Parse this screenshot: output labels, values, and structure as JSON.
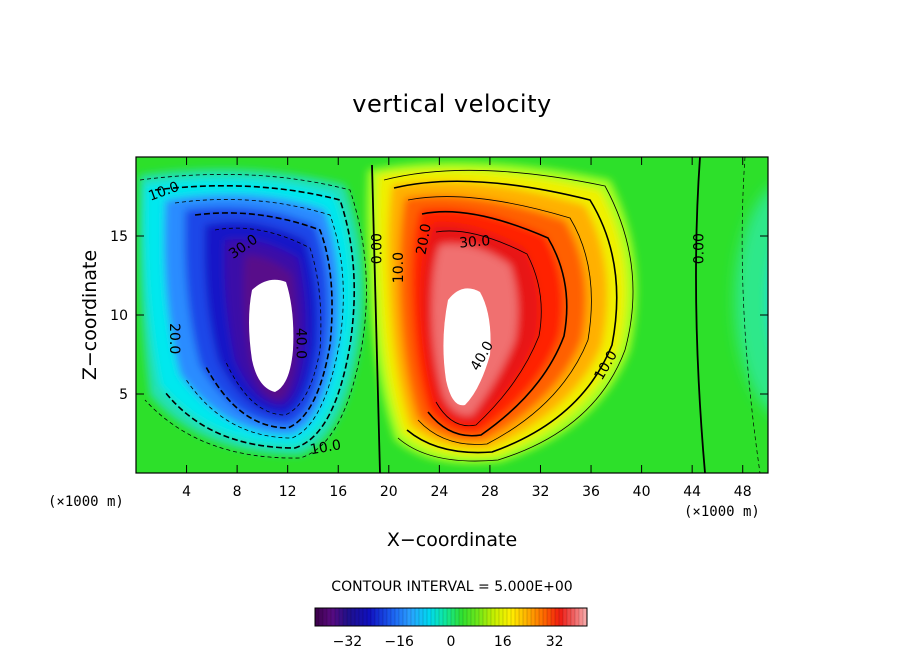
{
  "chart_data": {
    "type": "heatmap",
    "title": "vertical velocity",
    "xlabel": "X−coordinate",
    "ylabel": "Z−coordinate",
    "x_unit": "(×1000 m)",
    "y_unit": "(×1000 m)",
    "xlim": [
      0,
      50
    ],
    "ylim": [
      0,
      20
    ],
    "x_ticks": [
      4,
      8,
      12,
      16,
      20,
      24,
      28,
      32,
      36,
      40,
      44,
      48
    ],
    "y_ticks": [
      5,
      10,
      15
    ],
    "contour_interval_text": "CONTOUR INTERVAL = 5.000E+00",
    "colorbar": {
      "range": [
        -42,
        42
      ],
      "ticks": [
        -32,
        -16,
        0,
        16,
        32
      ],
      "tick_labels": [
        "−32",
        "−16",
        "0",
        "16",
        "32"
      ]
    },
    "contour_labels": [
      {
        "text": "10.0",
        "x": 2.2,
        "z": 17.8,
        "angle": -20
      },
      {
        "text": "30.0",
        "x": 8.5,
        "z": 14.3,
        "angle": -35
      },
      {
        "text": "20.0",
        "x": 3.0,
        "z": 8.5,
        "angle": 90
      },
      {
        "text": "40.0",
        "x": 13.0,
        "z": 8.2,
        "angle": 90
      },
      {
        "text": "10.0",
        "x": 15.0,
        "z": 1.6,
        "angle": -10
      },
      {
        "text": "0.00",
        "x": 19.1,
        "z": 14.2,
        "angle": -90
      },
      {
        "text": "10.0",
        "x": 20.8,
        "z": 13.0,
        "angle": -90
      },
      {
        "text": "20.0",
        "x": 22.8,
        "z": 14.8,
        "angle": -80
      },
      {
        "text": "30.0",
        "x": 26.8,
        "z": 14.6,
        "angle": -5
      },
      {
        "text": "40.0",
        "x": 27.4,
        "z": 7.4,
        "angle": -60
      },
      {
        "text": "10.0",
        "x": 37.2,
        "z": 6.8,
        "angle": -60
      },
      {
        "text": "0.00",
        "x": 44.6,
        "z": 14.2,
        "angle": -90
      }
    ]
  }
}
